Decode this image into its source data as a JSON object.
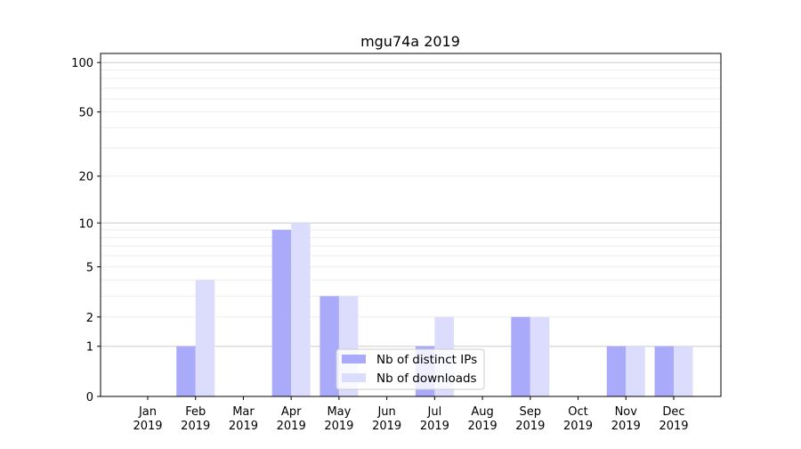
{
  "chart_data": {
    "type": "bar",
    "title": "mgu74a 2019",
    "xlabel": "",
    "ylabel": "",
    "y_scale": "symlog",
    "ylim": [
      0,
      110
    ],
    "y_ticks": [
      0,
      1,
      2,
      5,
      10,
      20,
      50,
      100
    ],
    "y_tick_labels": [
      "0",
      "1",
      "2",
      "5",
      "10",
      "20",
      "50",
      "100"
    ],
    "grid": "horizontal (major and minor)",
    "legend_position": "bottom-center",
    "categories": [
      "Jan\n2019",
      "Feb\n2019",
      "Mar\n2019",
      "Apr\n2019",
      "May\n2019",
      "Jun\n2019",
      "Jul\n2019",
      "Aug\n2019",
      "Sep\n2019",
      "Oct\n2019",
      "Nov\n2019",
      "Dec\n2019"
    ],
    "category_labels": [
      [
        "Jan",
        "2019"
      ],
      [
        "Feb",
        "2019"
      ],
      [
        "Mar",
        "2019"
      ],
      [
        "Apr",
        "2019"
      ],
      [
        "May",
        "2019"
      ],
      [
        "Jun",
        "2019"
      ],
      [
        "Jul",
        "2019"
      ],
      [
        "Aug",
        "2019"
      ],
      [
        "Sep",
        "2019"
      ],
      [
        "Oct",
        "2019"
      ],
      [
        "Nov",
        "2019"
      ],
      [
        "Dec",
        "2019"
      ]
    ],
    "series": [
      {
        "name": "Nb of distinct IPs",
        "color": "#aaaafa",
        "values": [
          0,
          1,
          0,
          9,
          3,
          0,
          1,
          0,
          2,
          0,
          1,
          1
        ]
      },
      {
        "name": "Nb of downloads",
        "color": "#dcdcfc",
        "values": [
          0,
          4,
          0,
          10,
          3,
          0,
          2,
          0,
          2,
          0,
          1,
          1
        ]
      }
    ]
  }
}
